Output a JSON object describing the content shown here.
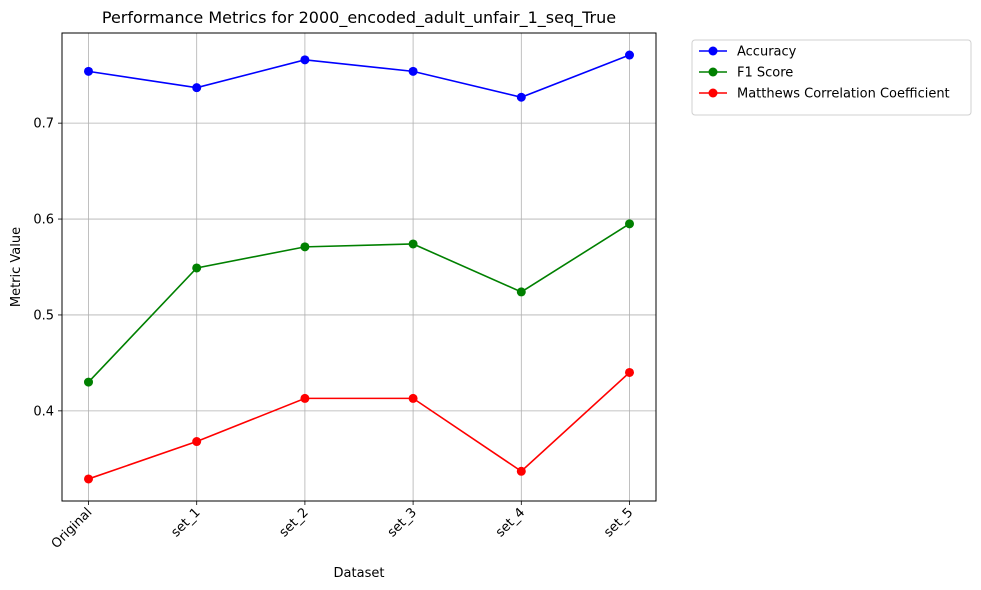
{
  "chart_data": {
    "type": "line",
    "title": "Performance Metrics for 2000_encoded_adult_unfair_1_seq_True",
    "xlabel": "Dataset",
    "ylabel": "Metric Value",
    "categories": [
      "Original",
      "set_1",
      "set_2",
      "set_3",
      "set_4",
      "set_5"
    ],
    "y_ticks": [
      "0.4",
      "0.5",
      "0.6",
      "0.7"
    ],
    "ylim": [
      0.306,
      0.794
    ],
    "grid": true,
    "legend_position": "outside-top-right",
    "series": [
      {
        "name": "Accuracy",
        "color": "#0000ff",
        "values": [
          0.754,
          0.737,
          0.766,
          0.754,
          0.727,
          0.771
        ]
      },
      {
        "name": "F1 Score",
        "color": "#008000",
        "values": [
          0.43,
          0.549,
          0.571,
          0.574,
          0.524,
          0.595
        ]
      },
      {
        "name": "Matthews Correlation Coefficient",
        "color": "#ff0000",
        "values": [
          0.329,
          0.368,
          0.413,
          0.413,
          0.337,
          0.44
        ]
      }
    ]
  }
}
